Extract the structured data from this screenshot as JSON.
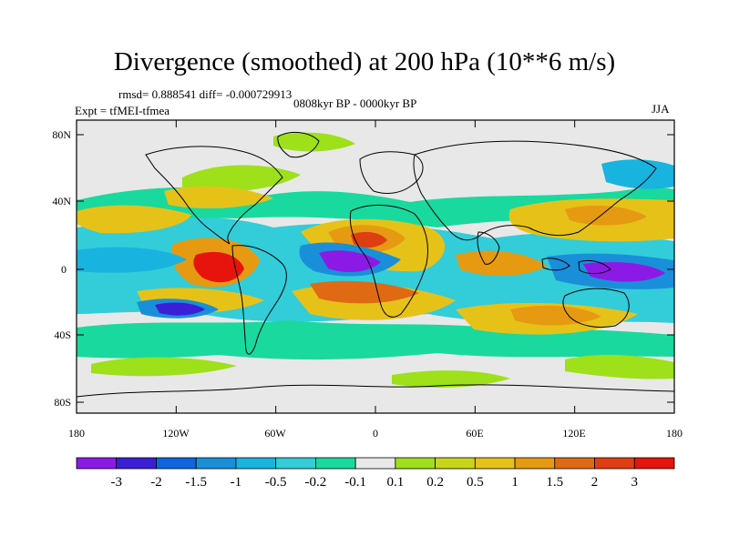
{
  "title": "Divergence (smoothed) at 200 hPa (10**6 m/s)",
  "stats": "rmsd= 0.888541  diff= -0.000729913",
  "expt": "Expt = tfMEI-tfmea",
  "period": "0808kyr BP - 0000kyr BP",
  "season": "JJA",
  "axes": {
    "lat_labels": [
      "80N",
      "40N",
      "0",
      "40S",
      "80S"
    ],
    "lon_labels": [
      "180",
      "120W",
      "60W",
      "0",
      "60E",
      "120E",
      "180"
    ]
  },
  "colorbar": {
    "labels": [
      "-3",
      "-2",
      "-1.5",
      "-1",
      "-0.5",
      "-0.2",
      "-0.1",
      "0.1",
      "0.2",
      "0.5",
      "1",
      "1.5",
      "2",
      "3"
    ],
    "colors": [
      "#8c1ae6",
      "#3a1fd6",
      "#0d66e0",
      "#1a8fd9",
      "#19b3e0",
      "#33ccd9",
      "#1ad99e",
      "#e8e8e8",
      "#9ee01a",
      "#c8d619",
      "#e6c219",
      "#e69a12",
      "#e06a14",
      "#de3e12",
      "#e6140d"
    ]
  },
  "colors": {
    "background": "#e8e8e8",
    "coast": "#000000"
  }
}
